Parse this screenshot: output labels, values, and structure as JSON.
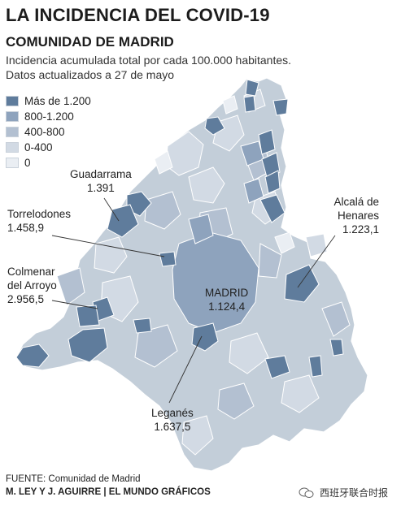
{
  "header": {
    "title": "LA INCIDENCIA DEL COVID-19",
    "subtitle": "COMUNIDAD DE MADRID",
    "description_line1": "Incidencia acumulada total por cada 100.000 habitantes.",
    "description_line2": "Datos actualizados a 27 de mayo"
  },
  "legend": [
    {
      "label": "Más de 1.200",
      "color": "#5f7c9c"
    },
    {
      "label": "800-1.200",
      "color": "#8ea3bd"
    },
    {
      "label": "400-800",
      "color": "#b3c0d1"
    },
    {
      "label": "0-400",
      "color": "#d2dae4"
    },
    {
      "label": "0",
      "color": "#eaeef3"
    }
  ],
  "labels": {
    "guadarrama": {
      "name": "Guadarrama",
      "value": "1.391"
    },
    "torrelodones": {
      "name": "Torrelodones",
      "value": "1.458,9"
    },
    "colmenar_line1": "Colmenar",
    "colmenar_line2": "del Arroyo",
    "colmenar_value": "2.956,5",
    "madrid": {
      "name": "MADRID",
      "value": "1.124,4"
    },
    "alcala_line1": "Alcalá de",
    "alcala_line2": "Henares",
    "alcala_value": "1.223,1",
    "leganes": {
      "name": "Leganés",
      "value": "1.637,5"
    }
  },
  "footer": {
    "source": "FUENTE: Comunidad de Madrid",
    "credit": "M. LEY Y J. AGUIRRE | EL MUNDO GRÁFICOS",
    "watermark": "西班牙联合时报"
  }
}
